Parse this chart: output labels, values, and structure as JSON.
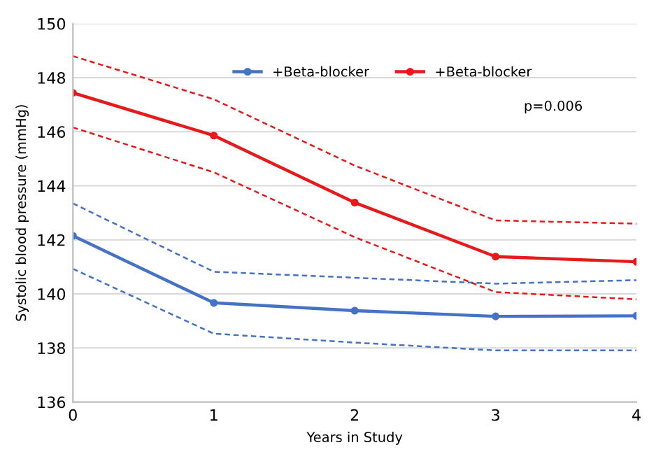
{
  "chart_data": {
    "type": "line",
    "xlabel": "Years in Study",
    "ylabel": "Systolic blood pressure (mmHg)",
    "x": [
      0,
      1,
      2,
      3,
      4
    ],
    "series": [
      {
        "name": "+Beta-blocker",
        "color": "#4472c4",
        "values": [
          142.15,
          139.67,
          139.38,
          139.17,
          139.19
        ],
        "marker": "circle",
        "line_style": "solid"
      },
      {
        "name": "+Beta-blocker",
        "color": "#e8191b",
        "values": [
          147.44,
          145.86,
          143.38,
          141.38,
          141.19
        ],
        "marker": "circle",
        "line_style": "solid"
      },
      {
        "color": "#4472c4",
        "values": [
          143.35,
          140.82,
          140.6,
          140.38,
          140.51
        ],
        "marker": "none",
        "line_style": "dashed"
      },
      {
        "color": "#4472c4",
        "values": [
          140.93,
          138.53,
          138.2,
          137.91,
          137.91
        ],
        "marker": "none",
        "line_style": "dashed"
      },
      {
        "color": "#e8191b",
        "values": [
          148.8,
          147.2,
          144.75,
          142.72,
          142.6
        ],
        "marker": "none",
        "line_style": "dashed"
      },
      {
        "color": "#e8191b",
        "values": [
          146.16,
          144.5,
          142.1,
          140.07,
          139.8
        ],
        "marker": "none",
        "line_style": "dashed"
      }
    ],
    "annotations": [
      "p=0.006"
    ],
    "xlim": [
      0,
      4
    ],
    "xticks": [
      0,
      1,
      2,
      3,
      4
    ],
    "ylim": [
      136,
      150
    ],
    "yticks": [
      136,
      138,
      140,
      142,
      144,
      146,
      148,
      150
    ],
    "grid": "y",
    "legend": "top"
  }
}
